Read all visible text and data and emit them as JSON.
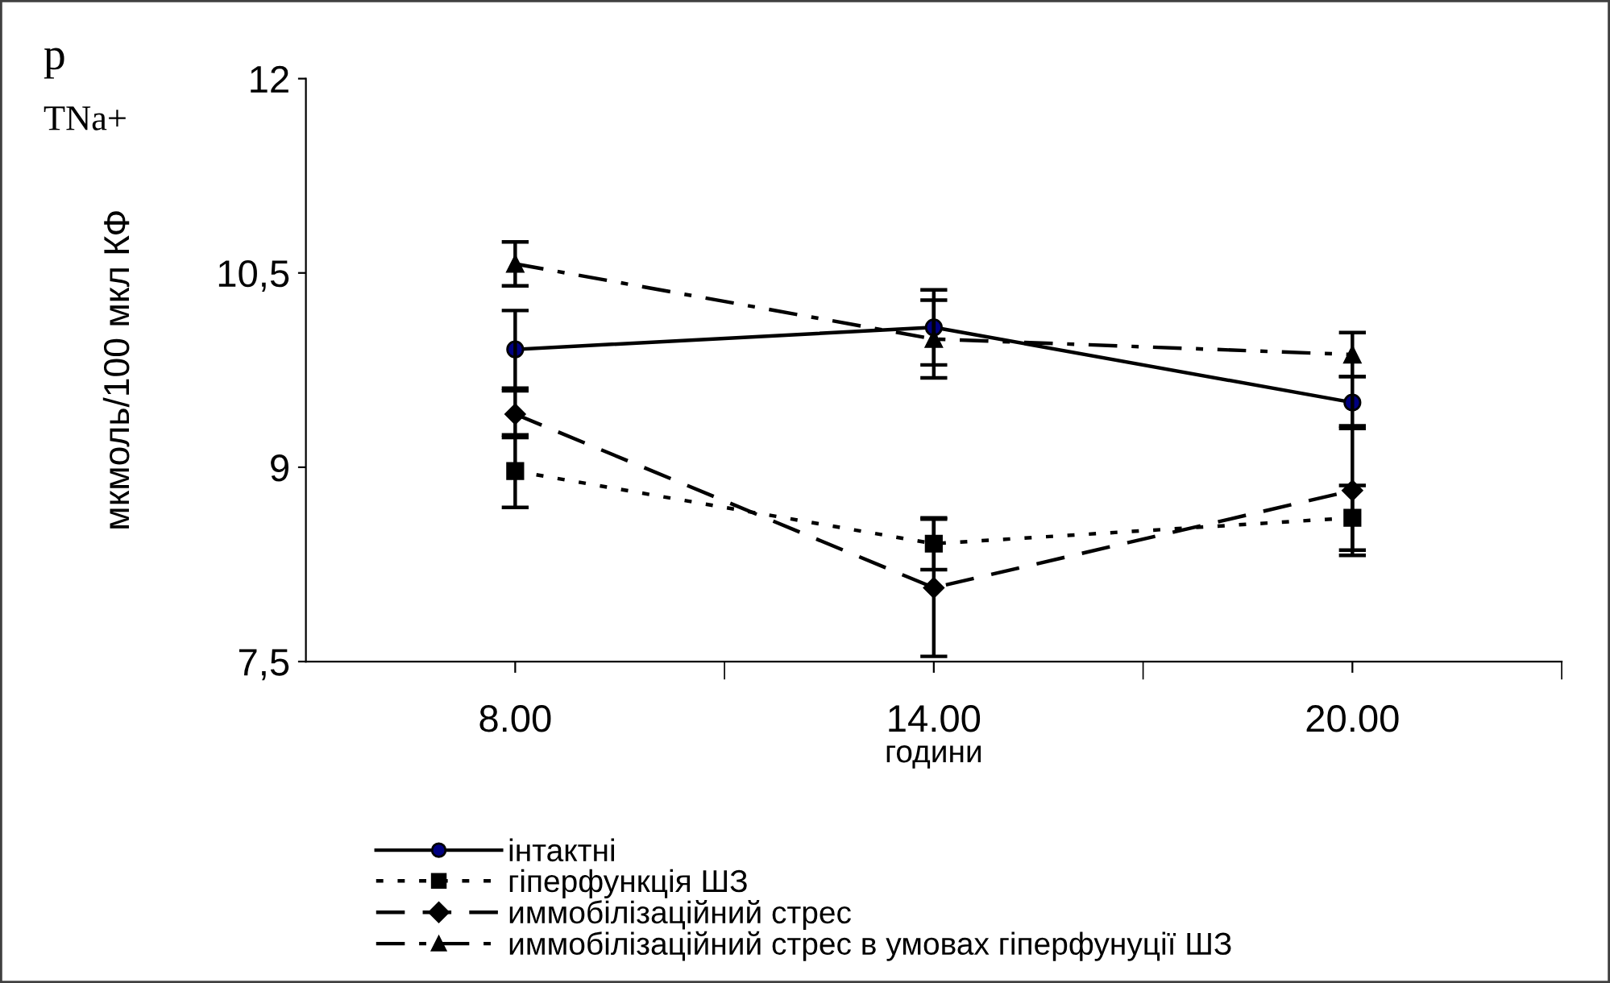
{
  "chart_data": {
    "type": "line",
    "categories": [
      "8.00",
      "14.00",
      "20.00"
    ],
    "xlabel": "години",
    "ylabel": "мкмоль/100 мкл КФ",
    "annotations": [
      "p",
      "TNa+"
    ],
    "ylim": [
      7.5,
      12
    ],
    "yticks": [
      {
        "value": 7.5,
        "label": "7,5"
      },
      9,
      {
        "value": 10.5,
        "label": "10,5"
      },
      12
    ],
    "grid": false,
    "legend": "bottom",
    "series": [
      {
        "name": "інтактні",
        "color": "#000080",
        "marker": "circle",
        "line_style": "solid",
        "values": [
          9.91,
          10.08,
          9.5
        ],
        "errors": [
          0.3,
          0.29,
          0.2
        ]
      },
      {
        "name": "гіперфункція ШЗ",
        "color": "#000000",
        "marker": "square",
        "line_style": "dotted",
        "values": [
          8.97,
          8.41,
          8.61
        ],
        "errors": [
          0.28,
          0.2,
          0.25
        ]
      },
      {
        "name": "иммобілізаційний стрес",
        "color": "#000000",
        "marker": "diamond",
        "line_style": "dashed",
        "values": [
          9.41,
          8.07,
          8.82
        ],
        "errors": [
          0.18,
          0.53,
          0.5
        ]
      },
      {
        "name": "иммобілізаційний стрес в умовах гіперфунуції ШЗ",
        "color": "#000000",
        "marker": "triangle",
        "line_style": "dashdot",
        "values": [
          10.57,
          9.99,
          9.87
        ],
        "errors": [
          0.17,
          0.3,
          0.17
        ]
      }
    ]
  }
}
